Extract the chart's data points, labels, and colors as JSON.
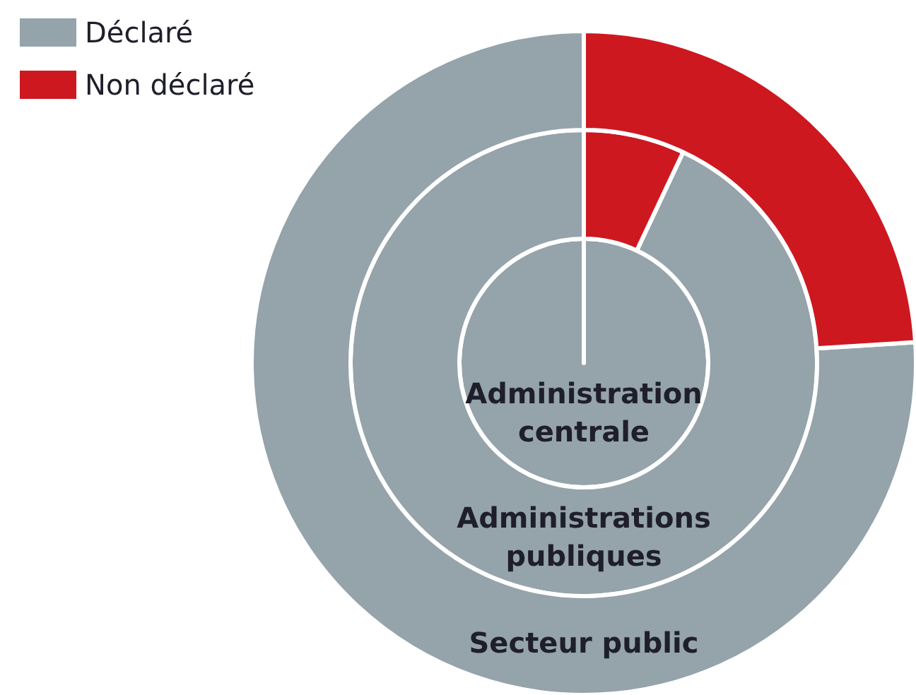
{
  "chart_data": {
    "type": "donut",
    "categories": [
      "Déclaré",
      "Non déclaré"
    ],
    "colors": [
      "#95a3aa",
      "#cd1820"
    ],
    "legend": "top left",
    "series": [
      {
        "name": "Administration centrale",
        "values": [
          100,
          0
        ]
      },
      {
        "name": "Administrations publiques",
        "values": [
          93,
          7
        ]
      },
      {
        "name": "Secteur public",
        "values": [
          76,
          24
        ]
      }
    ]
  }
}
